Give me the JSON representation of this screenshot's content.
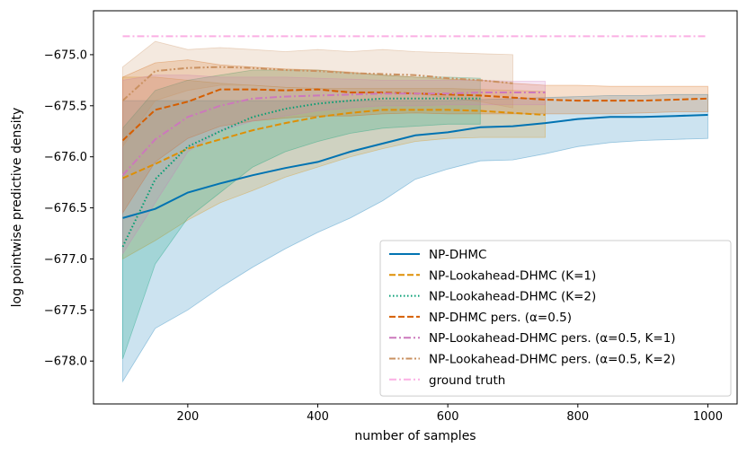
{
  "chart_data": {
    "type": "line",
    "xlabel": "number of samples",
    "ylabel": "log pointwise predictive density",
    "xlim": [
      55,
      1045
    ],
    "ylim": [
      -678.42,
      -674.57
    ],
    "xticks": [
      200,
      400,
      600,
      800,
      1000
    ],
    "xtick_labels": [
      "200",
      "400",
      "600",
      "800",
      "1000"
    ],
    "yticks": [
      -678.0,
      -677.5,
      -677.0,
      -676.5,
      -676.0,
      -675.5,
      -675.0
    ],
    "ytick_labels": [
      "−678.0",
      "−677.5",
      "−677.0",
      "−676.5",
      "−676.0",
      "−675.5",
      "−675.0"
    ],
    "grid": false,
    "legend_position": "lower-right",
    "series": [
      {
        "name": "NP-DHMC",
        "color": "#0173b2",
        "dash": "solid",
        "x": [
          100,
          150,
          200,
          250,
          300,
          350,
          400,
          450,
          500,
          550,
          600,
          650,
          700,
          750,
          800,
          850,
          900,
          950,
          1000
        ],
        "y": [
          -676.6,
          -676.51,
          -676.35,
          -676.26,
          -676.18,
          -676.11,
          -676.05,
          -675.95,
          -675.87,
          -675.79,
          -675.76,
          -675.71,
          -675.7,
          -675.67,
          -675.63,
          -675.61,
          -675.61,
          -675.6,
          -675.59
        ],
        "upper": [
          -675.45,
          -675.45,
          -675.45,
          -675.45,
          -675.45,
          -675.45,
          -675.45,
          -675.45,
          -675.45,
          -675.45,
          -675.45,
          -675.44,
          -675.43,
          -675.42,
          -675.41,
          -675.4,
          -675.4,
          -675.39,
          -675.39
        ],
        "lower": [
          -678.2,
          -677.68,
          -677.5,
          -677.28,
          -677.08,
          -676.9,
          -676.74,
          -676.6,
          -676.43,
          -676.22,
          -676.12,
          -676.04,
          -676.03,
          -675.97,
          -675.9,
          -675.86,
          -675.84,
          -675.83,
          -675.82
        ]
      },
      {
        "name": "NP-Lookahead-DHMC (K=1)",
        "color": "#de8f05",
        "dash": "dashed",
        "x": [
          100,
          150,
          200,
          250,
          300,
          350,
          400,
          450,
          500,
          550,
          600,
          650,
          700,
          750
        ],
        "y": [
          -676.21,
          -676.07,
          -675.92,
          -675.83,
          -675.74,
          -675.67,
          -675.61,
          -675.57,
          -675.54,
          -675.54,
          -675.54,
          -675.55,
          -675.57,
          -675.59
        ],
        "upper": [
          -675.22,
          -675.22,
          -675.25,
          -675.28,
          -675.3,
          -675.32,
          -675.33,
          -675.33,
          -675.33,
          -675.33,
          -675.33,
          -675.34,
          -675.35,
          -675.36
        ],
        "lower": [
          -677.0,
          -676.82,
          -676.62,
          -676.45,
          -676.33,
          -676.2,
          -676.1,
          -676.0,
          -675.92,
          -675.85,
          -675.82,
          -675.81,
          -675.81,
          -675.81
        ]
      },
      {
        "name": "NP-Lookahead-DHMC (K=2)",
        "color": "#029e73",
        "dash": "dotted",
        "x": [
          100,
          150,
          200,
          250,
          300,
          350,
          400,
          450,
          500,
          550,
          600,
          650
        ],
        "y": [
          -676.88,
          -676.22,
          -675.9,
          -675.75,
          -675.61,
          -675.53,
          -675.48,
          -675.45,
          -675.43,
          -675.43,
          -675.43,
          -675.43
        ],
        "upper": [
          -675.72,
          -675.35,
          -675.25,
          -675.2,
          -675.15,
          -675.15,
          -675.15,
          -675.18,
          -675.2,
          -675.22,
          -675.22,
          -675.23
        ],
        "lower": [
          -677.98,
          -677.05,
          -676.6,
          -676.35,
          -676.1,
          -675.95,
          -675.85,
          -675.77,
          -675.72,
          -675.7,
          -675.68,
          -675.68
        ]
      },
      {
        "name": "NP-DHMC pers. (α=0.5)",
        "color": "#d55e00",
        "dash": "dashed",
        "x": [
          100,
          150,
          200,
          250,
          300,
          350,
          400,
          450,
          500,
          550,
          600,
          650,
          700,
          750,
          800,
          850,
          900,
          950,
          1000
        ],
        "y": [
          -675.84,
          -675.54,
          -675.46,
          -675.34,
          -675.34,
          -675.35,
          -675.34,
          -675.37,
          -675.37,
          -675.38,
          -675.39,
          -675.4,
          -675.42,
          -675.44,
          -675.45,
          -675.45,
          -675.45,
          -675.44,
          -675.43
        ],
        "upper": [
          -675.22,
          -675.08,
          -675.05,
          -675.1,
          -675.12,
          -675.14,
          -675.15,
          -675.17,
          -675.2,
          -675.22,
          -675.24,
          -675.25,
          -675.28,
          -675.3,
          -675.3,
          -675.31,
          -675.31,
          -675.31,
          -675.31
        ],
        "lower": [
          -676.55,
          -676.05,
          -675.82,
          -675.7,
          -675.65,
          -675.62,
          -675.6,
          -675.6,
          -675.58,
          -675.57,
          -675.58,
          -675.58,
          -675.58,
          -675.58,
          -675.58,
          -675.58,
          -675.57,
          -675.56,
          -675.56
        ]
      },
      {
        "name": "NP-Lookahead-DHMC pers. (α=0.5, K=1)",
        "color": "#cc78bc",
        "dash": "dashdot",
        "x": [
          100,
          150,
          200,
          250,
          300,
          350,
          400,
          450,
          500,
          550,
          600,
          650,
          700,
          750
        ],
        "y": [
          -676.18,
          -675.83,
          -675.61,
          -675.5,
          -675.43,
          -675.41,
          -675.4,
          -675.39,
          -675.38,
          -675.38,
          -675.38,
          -675.37,
          -675.37,
          -675.37
        ],
        "upper": [
          -675.25,
          -675.2,
          -675.2,
          -675.22,
          -675.22,
          -675.22,
          -675.23,
          -675.24,
          -675.25,
          -675.25,
          -675.25,
          -675.25,
          -675.26,
          -675.26
        ],
        "lower": [
          -676.95,
          -676.45,
          -675.95,
          -675.75,
          -675.65,
          -675.6,
          -675.55,
          -675.52,
          -675.5,
          -675.5,
          -675.49,
          -675.49,
          -675.49,
          -675.49
        ]
      },
      {
        "name": "NP-Lookahead-DHMC pers. (α=0.5, K=2)",
        "color": "#ca9161",
        "dash": "dashdotdot",
        "x": [
          100,
          150,
          200,
          250,
          300,
          350,
          400,
          450,
          500,
          550,
          600,
          650,
          700
        ],
        "y": [
          -675.45,
          -675.16,
          -675.13,
          -675.12,
          -675.13,
          -675.15,
          -675.16,
          -675.18,
          -675.19,
          -675.2,
          -675.23,
          -675.25,
          -675.28
        ],
        "upper": [
          -675.12,
          -674.87,
          -674.95,
          -674.93,
          -674.95,
          -674.97,
          -674.95,
          -674.97,
          -674.95,
          -674.97,
          -674.98,
          -674.99,
          -675.0
        ],
        "lower": [
          -675.9,
          -675.45,
          -675.35,
          -675.3,
          -675.3,
          -675.32,
          -675.33,
          -675.37,
          -675.38,
          -675.38,
          -675.42,
          -675.46,
          -675.52
        ]
      },
      {
        "name": "ground truth",
        "color": "#fbafe4",
        "dash": "dashdot",
        "x": [
          100,
          1000
        ],
        "y": [
          -674.82,
          -674.82
        ]
      }
    ]
  }
}
